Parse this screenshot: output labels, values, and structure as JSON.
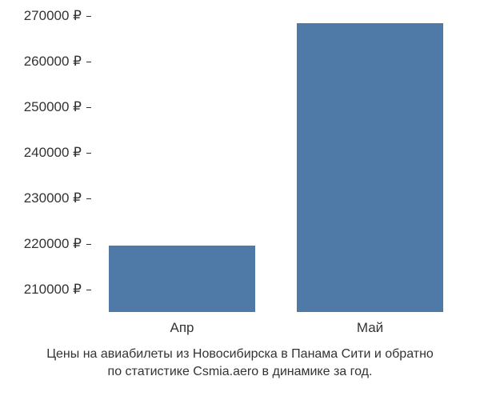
{
  "chart": {
    "type": "bar",
    "background_color": "#ffffff",
    "text_color": "#333333",
    "label_fontsize": 17,
    "caption_fontsize": 16,
    "yaxis": {
      "min": 205000,
      "max": 270000,
      "ticks": [
        210000,
        220000,
        230000,
        240000,
        250000,
        260000,
        270000
      ],
      "tick_labels": [
        "210000 ₽",
        "220000 ₽",
        "230000 ₽",
        "240000 ₽",
        "250000 ₽",
        "260000 ₽",
        "270000 ₽"
      ],
      "tick_mark_color": "#333333"
    },
    "bars": {
      "color": "#4f79a7",
      "width_fraction": 0.78,
      "categories": [
        "Апр",
        "Май"
      ],
      "values": [
        219500,
        268500
      ]
    },
    "caption_lines": [
      "Цены на авиабилеты из Новосибирска в Панама Сити и обратно",
      "по статистике Csmia.aero в динамике за год."
    ]
  }
}
